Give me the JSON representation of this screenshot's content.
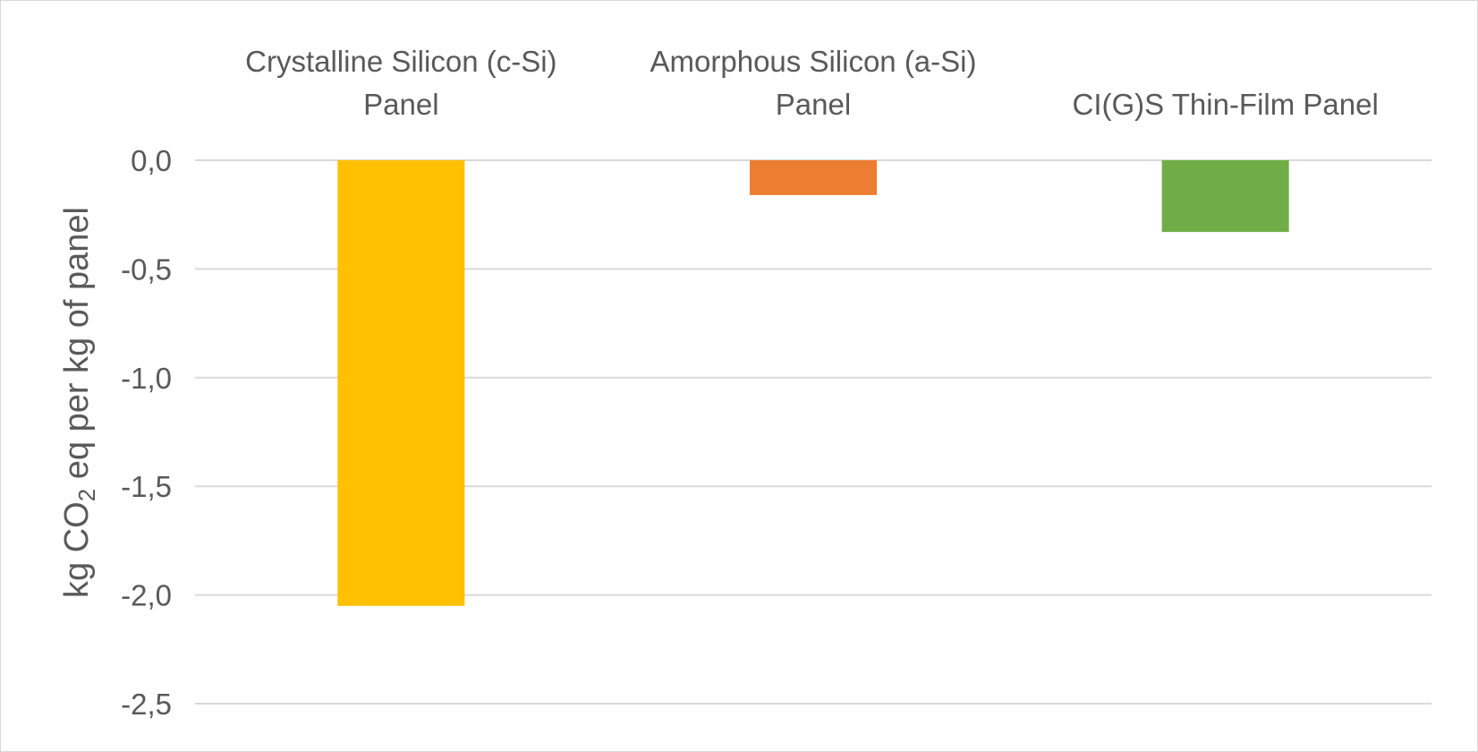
{
  "chart_data": {
    "type": "bar",
    "categories": [
      [
        "Crystalline Silicon (c-Si)",
        "Panel"
      ],
      [
        "Amorphous Silicon (a-Si)",
        "Panel"
      ],
      [
        "CI(G)S Thin-Film Panel"
      ]
    ],
    "values": [
      -2.05,
      -0.16,
      -0.33
    ],
    "colors": [
      "#FFC000",
      "#ED7D31",
      "#70AD47"
    ],
    "ylabel": {
      "pre": "kg CO",
      "sub": "2",
      "post": " eq per kg of panel"
    },
    "ylim": [
      -2.5,
      0.0
    ],
    "yticks": [
      0.0,
      -0.5,
      -1.0,
      -1.5,
      -2.0,
      -2.5
    ],
    "ytick_labels": [
      "0,0",
      "-0,5",
      "-1,0",
      "-1,5",
      "-2,0",
      "-2,5"
    ],
    "category_label_position": "top",
    "grid": true,
    "legend": "none",
    "gridline_color": "#d9d9d9",
    "text_color": "#595959"
  }
}
